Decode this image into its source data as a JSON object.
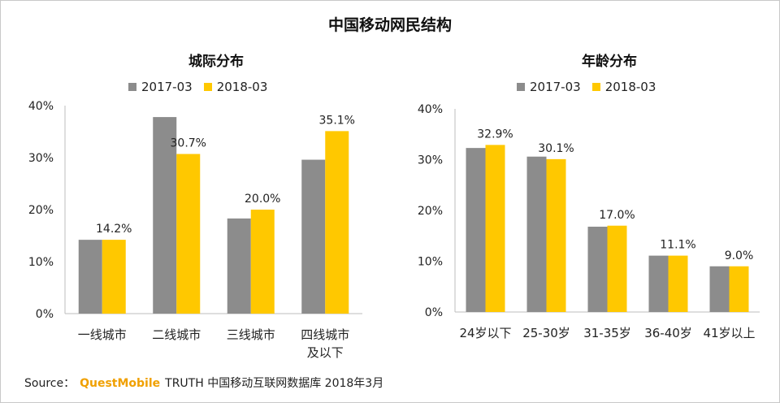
{
  "title": "中国移动网民结构",
  "colors": {
    "series_2017": "#8c8c8c",
    "series_2018": "#ffc800",
    "axis": "#bdbdbd"
  },
  "source": {
    "label": "Source：",
    "brand": "QuestMobile",
    "text": "TRUTH 中国移动互联网数据库 2018年3月"
  },
  "chart_data": [
    {
      "type": "bar",
      "title": "城际分布",
      "categories": [
        "一线城市",
        "二线城市",
        "三线城市",
        "四线城市\n及以下"
      ],
      "series": [
        {
          "name": "2017-03",
          "values": [
            14.2,
            37.8,
            18.3,
            29.6
          ]
        },
        {
          "name": "2018-03",
          "values": [
            14.2,
            30.7,
            20.0,
            35.1
          ]
        }
      ],
      "data_labels": [
        "14.2%",
        "30.7%",
        "20.0%",
        "35.1%"
      ],
      "ylim": [
        0,
        40
      ],
      "yticks": [
        "0%",
        "10%",
        "20%",
        "30%",
        "40%"
      ],
      "xlabel": "",
      "ylabel": "",
      "legend": "top"
    },
    {
      "type": "bar",
      "title": "年龄分布",
      "categories": [
        "24岁以下",
        "25-30岁",
        "31-35岁",
        "36-40岁",
        "41岁以上"
      ],
      "series": [
        {
          "name": "2017-03",
          "values": [
            32.3,
            30.6,
            16.8,
            11.1,
            9.0
          ]
        },
        {
          "name": "2018-03",
          "values": [
            32.9,
            30.1,
            17.0,
            11.1,
            9.0
          ]
        }
      ],
      "data_labels": [
        "32.9%",
        "30.1%",
        "17.0%",
        "11.1%",
        "9.0%"
      ],
      "ylim": [
        0,
        40
      ],
      "yticks": [
        "0%",
        "10%",
        "20%",
        "30%",
        "40%"
      ],
      "xlabel": "",
      "ylabel": "",
      "legend": "top"
    }
  ]
}
